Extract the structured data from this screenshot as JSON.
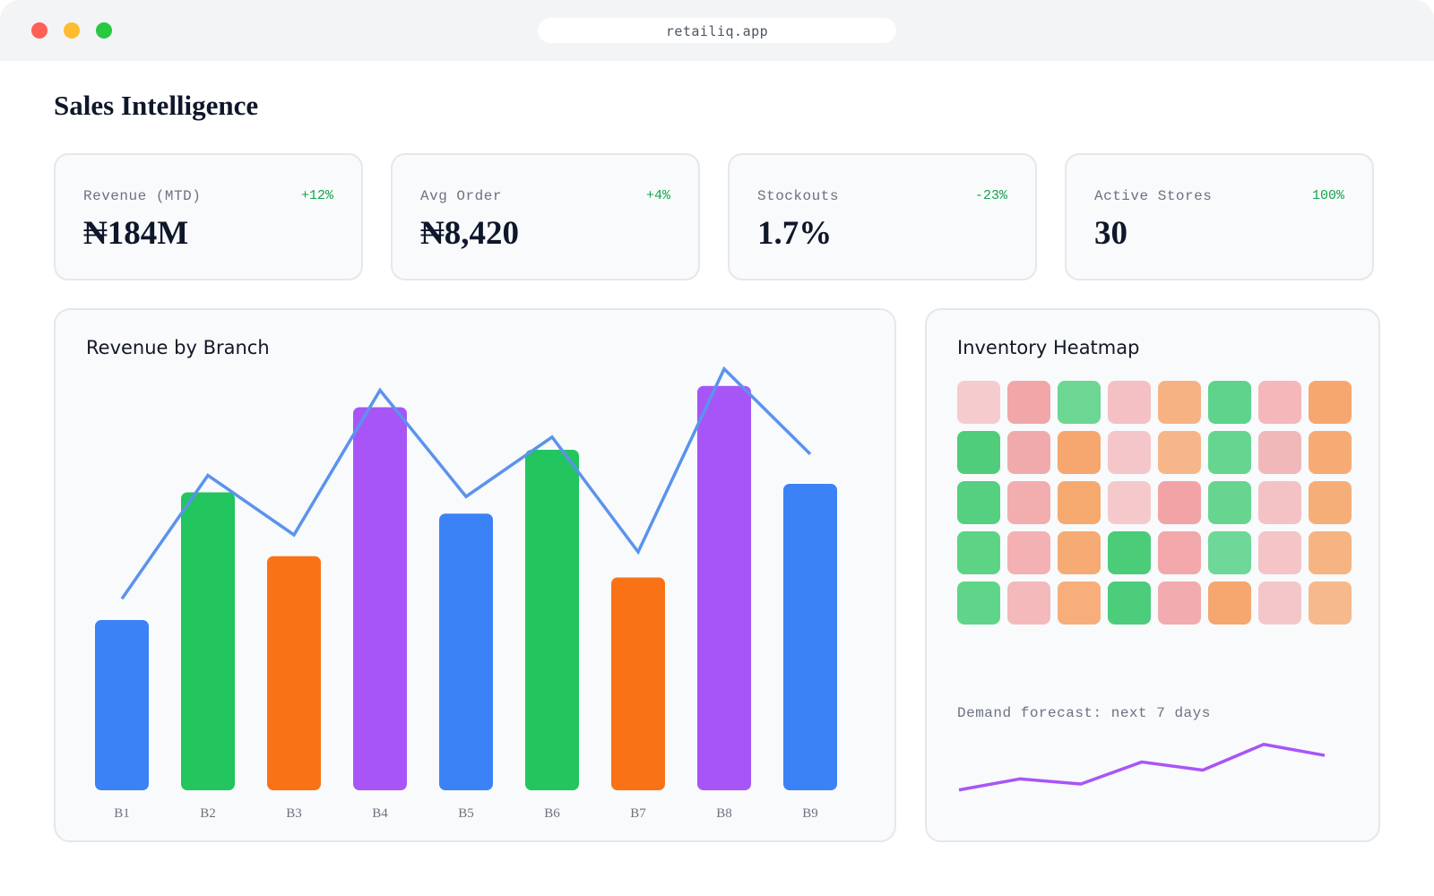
{
  "browser": {
    "url": "retailiq.app"
  },
  "page": {
    "title": "Sales Intelligence"
  },
  "kpis": [
    {
      "label": "Revenue (MTD)",
      "value": "₦184M",
      "delta": "+12%"
    },
    {
      "label": "Avg Order",
      "value": "₦8,420",
      "delta": "+4%"
    },
    {
      "label": "Stockouts",
      "value": "1.7%",
      "delta": "-23%"
    },
    {
      "label": "Active Stores",
      "value": "30",
      "delta": "100%"
    }
  ],
  "colors": {
    "accent_green": "#16a34a",
    "bar_palette": [
      "#3b82f6",
      "#22c55e",
      "#f97316",
      "#a855f7"
    ],
    "line": "#5b93ec",
    "forecast_line": "#a855f7"
  },
  "revenue_panel": {
    "title": "Revenue by Branch"
  },
  "chart_data": {
    "type": "bar",
    "categories": [
      "B1",
      "B2",
      "B3",
      "B4",
      "B5",
      "B6",
      "B7",
      "B8",
      "B9"
    ],
    "series": [
      {
        "values": [
          40,
          70,
          55,
          90,
          65,
          80,
          50,
          95,
          72
        ],
        "type": "bar"
      },
      {
        "values": [
          45,
          74,
          60,
          94,
          69,
          83,
          56,
          99,
          79
        ],
        "type": "line"
      }
    ],
    "ylim": [
      0,
      100
    ],
    "grid": false,
    "legend": "none"
  },
  "heatmap_panel": {
    "title": "Inventory Heatmap",
    "rows": [
      [
        "#f5cbcd",
        "#f1a6a8",
        "#6cd793",
        "#f5c0c3",
        "#f7b284",
        "#5dd38b",
        "#f5b7ba",
        "#f6a66f"
      ],
      [
        "#4fcd7b",
        "#f1aaac",
        "#f6a66f",
        "#f5c6c9",
        "#f7b68a",
        "#66d590",
        "#f1b8ba",
        "#f6ab75"
      ],
      [
        "#55cf80",
        "#f2adaf",
        "#f6a96f",
        "#f5c9cc",
        "#f1a3a5",
        "#67d590",
        "#f3c2c4",
        "#f6ae79"
      ],
      [
        "#5dd386",
        "#f3b1b3",
        "#f6aa74",
        "#4bcc79",
        "#f2a7aa",
        "#6dd897",
        "#f4c4c6",
        "#f6b482"
      ],
      [
        "#5fd589",
        "#f3b9bb",
        "#f7ae7b",
        "#4ccd7b",
        "#f2abae",
        "#f6a66f",
        "#f3c7c9",
        "#f6b98b"
      ]
    ],
    "forecast_label": "Demand forecast: next 7 days",
    "forecast_values": [
      20,
      35,
      28,
      58,
      47,
      82,
      67
    ]
  }
}
